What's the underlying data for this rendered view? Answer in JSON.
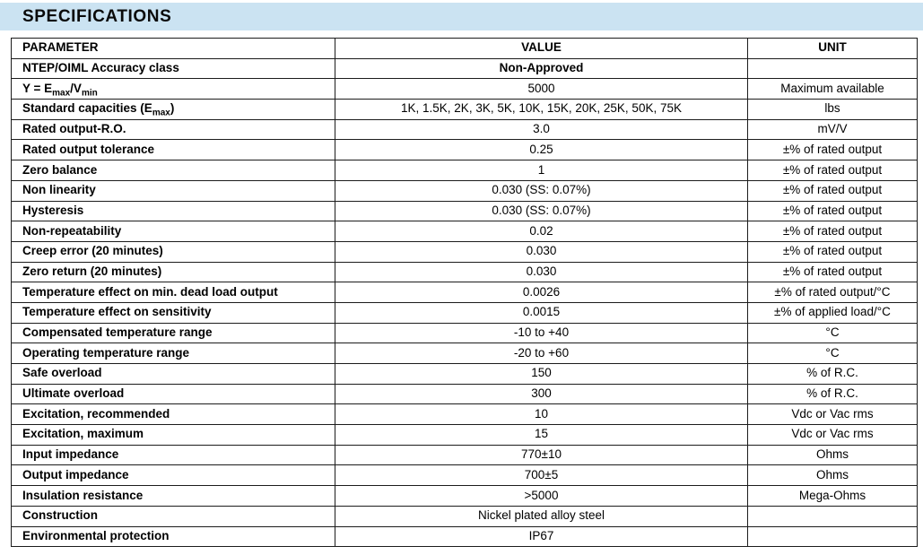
{
  "header": {
    "title": "SPECIFICATIONS"
  },
  "colors": {
    "band": "#cbe3f2",
    "border": "#1c1c1c",
    "text": "#000000",
    "background": "#ffffff"
  },
  "table": {
    "columns": [
      "PARAMETER",
      "VALUE",
      "UNIT"
    ],
    "rows": [
      {
        "parameter": "NTEP/OIML Accuracy class",
        "value": "Non-Approved",
        "value_bold": true,
        "unit": ""
      },
      {
        "parameter": "Y = E_{max}/V_{min}",
        "value": "5000",
        "unit": "Maximum available"
      },
      {
        "parameter": "Standard capacities (E_{max})",
        "value": "1K, 1.5K, 2K, 3K, 5K, 10K, 15K, 20K, 25K, 50K, 75K",
        "unit": "lbs"
      },
      {
        "parameter": "Rated output-R.O.",
        "value": "3.0",
        "unit": "mV/V"
      },
      {
        "parameter": "Rated output tolerance",
        "value": "0.25",
        "unit": "±% of rated output"
      },
      {
        "parameter": "Zero balance",
        "value": "1",
        "unit": "±% of rated output"
      },
      {
        "parameter": "Non linearity",
        "value": "0.030 (SS: 0.07%)",
        "unit": "±% of rated output"
      },
      {
        "parameter": "Hysteresis",
        "value": "0.030 (SS: 0.07%)",
        "unit": "±% of rated output"
      },
      {
        "parameter": "Non-repeatability",
        "value": "0.02",
        "unit": "±% of rated output"
      },
      {
        "parameter": "Creep error (20 minutes)",
        "value": "0.030",
        "unit": "±% of rated output"
      },
      {
        "parameter": "Zero return (20 minutes)",
        "value": "0.030",
        "unit": "±% of rated output"
      },
      {
        "parameter": "Temperature effect on min. dead load output",
        "value": "0.0026",
        "unit": "±% of rated output/°C"
      },
      {
        "parameter": "Temperature effect on sensitivity",
        "value": "0.0015",
        "unit": "±% of applied load/°C"
      },
      {
        "parameter": "Compensated temperature range",
        "value": "-10 to +40",
        "unit": "°C"
      },
      {
        "parameter": "Operating temperature range",
        "value": "-20 to +60",
        "unit": "°C"
      },
      {
        "parameter": "Safe overload",
        "value": "150",
        "unit": "% of R.C."
      },
      {
        "parameter": "Ultimate overload",
        "value": "300",
        "unit": "% of R.C."
      },
      {
        "parameter": "Excitation, recommended",
        "value": "10",
        "unit": "Vdc or Vac rms"
      },
      {
        "parameter": "Excitation, maximum",
        "value": "15",
        "unit": "Vdc or Vac rms"
      },
      {
        "parameter": "Input impedance",
        "value": "770±10",
        "unit": "Ohms"
      },
      {
        "parameter": "Output impedance",
        "value": "700±5",
        "unit": "Ohms"
      },
      {
        "parameter": "Insulation resistance",
        "value": ">5000",
        "unit": "Mega-Ohms"
      },
      {
        "parameter": "Construction",
        "value": "Nickel plated alloy steel",
        "unit": ""
      },
      {
        "parameter": "Environmental protection",
        "value": "IP67",
        "unit": ""
      }
    ]
  }
}
